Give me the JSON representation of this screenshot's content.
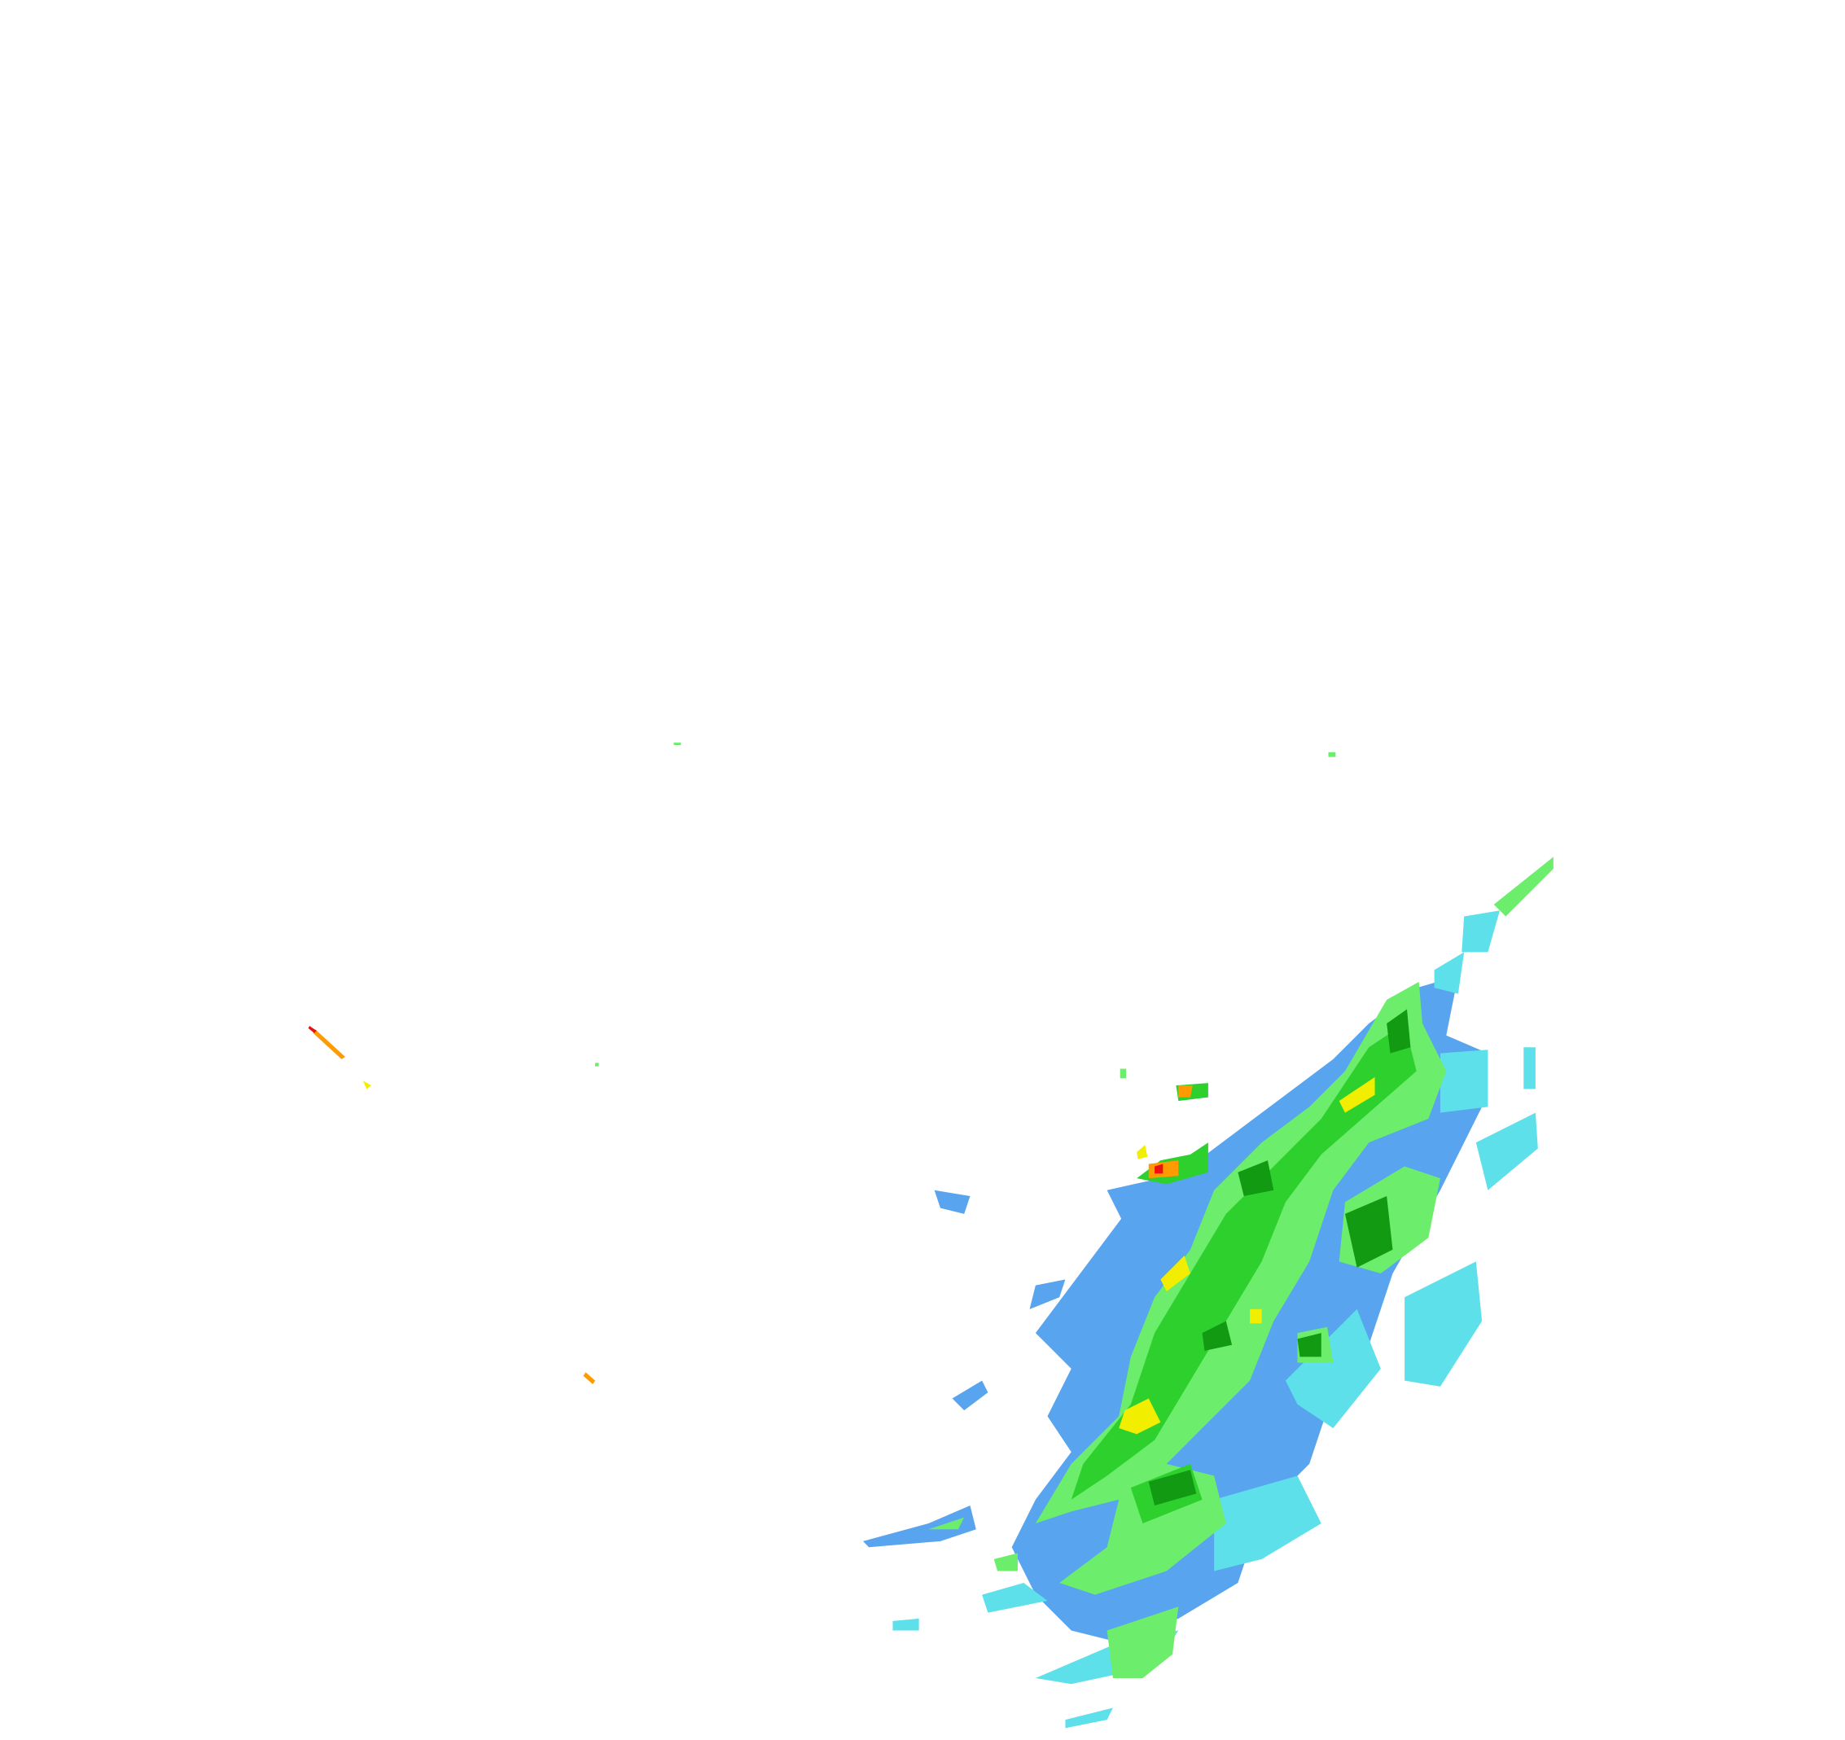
{
  "radar": {
    "background": "#ffffff",
    "reflectivity_colors": {
      "light_blue": "#58a4ee",
      "cyan": "#5ee0ea",
      "light_green": "#6cee6c",
      "green": "#2ed02e",
      "dark_green": "#129a12",
      "yellow": "#f2ee00",
      "orange": "#ff9a00",
      "red": "#ee1010"
    }
  }
}
